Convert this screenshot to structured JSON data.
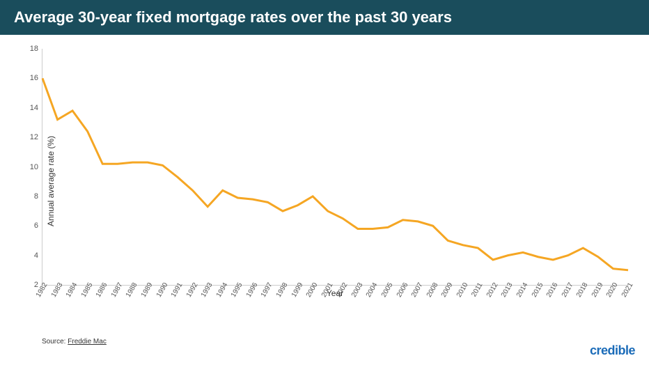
{
  "title": "Average 30-year fixed mortgage rates over the past 30 years",
  "chart": {
    "type": "line",
    "ylabel": "Annual average rate (%)",
    "xlabel": "Year",
    "ylim": [
      2,
      18
    ],
    "ytick_step": 2,
    "yticks": [
      2,
      4,
      6,
      8,
      10,
      12,
      14,
      16,
      18
    ],
    "years": [
      1982,
      1983,
      1984,
      1985,
      1986,
      1987,
      1988,
      1989,
      1990,
      1991,
      1992,
      1993,
      1994,
      1995,
      1996,
      1997,
      1998,
      1999,
      2000,
      2001,
      2002,
      2003,
      2004,
      2005,
      2006,
      2007,
      2008,
      2009,
      2010,
      2011,
      2012,
      2013,
      2014,
      2015,
      2016,
      2017,
      2018,
      2019,
      2020,
      2021
    ],
    "values": [
      16.0,
      13.2,
      13.8,
      12.4,
      10.2,
      10.2,
      10.3,
      10.3,
      10.1,
      9.3,
      8.4,
      7.3,
      8.4,
      7.9,
      7.8,
      7.6,
      7.0,
      7.4,
      8.0,
      7.0,
      6.5,
      5.8,
      5.8,
      5.9,
      6.4,
      6.3,
      6.0,
      5.0,
      4.7,
      4.5,
      3.7,
      4.0,
      4.2,
      3.9,
      3.7,
      4.0,
      4.5,
      3.9,
      3.1,
      3.0
    ],
    "line_color": "#f5a623",
    "line_width": 3,
    "background_color": "#ffffff",
    "axis_color": "#cccccc",
    "tick_font_size": 11,
    "label_font_size": 12,
    "title_bg": "#1a4d5c",
    "title_color": "#ffffff",
    "title_font_size": 22
  },
  "source_prefix": "Source: ",
  "source_name": "Freddie Mac",
  "brand": "credible"
}
